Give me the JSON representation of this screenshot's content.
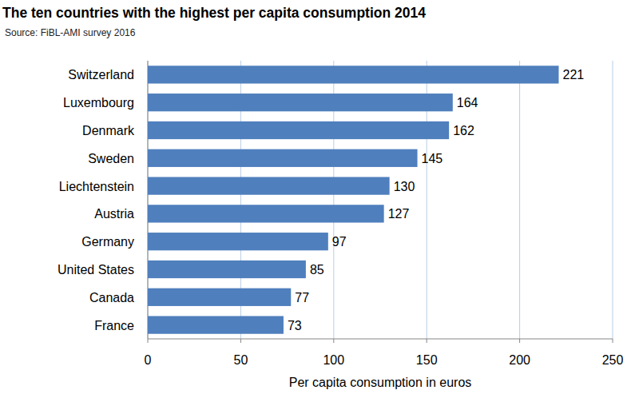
{
  "chart_data": {
    "type": "bar",
    "orientation": "horizontal",
    "title": "The ten countries with the highest per capita consumption 2014",
    "subtitle": "Source: FiBL-AMI survey 2016",
    "x_label": "Per capita consumption in euros",
    "categories": [
      "Switzerland",
      "Luxembourg",
      "Denmark",
      "Sweden",
      "Liechtenstein",
      "Austria",
      "Germany",
      "United States",
      "Canada",
      "France"
    ],
    "values": [
      221,
      164,
      162,
      145,
      130,
      127,
      97,
      85,
      77,
      73
    ],
    "color": "#4f7fbd",
    "xlim": [
      0,
      250
    ],
    "xticks": [
      0,
      50,
      100,
      150,
      200,
      250
    ],
    "grid": true,
    "data_labels": true
  }
}
